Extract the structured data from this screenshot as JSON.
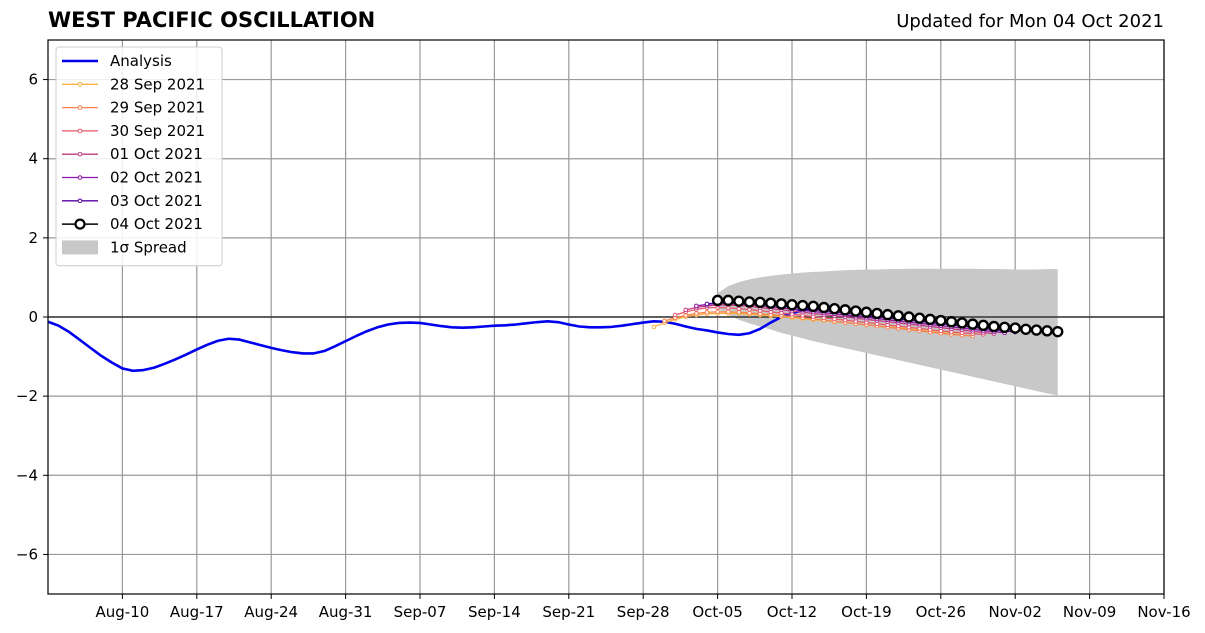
{
  "header": {
    "title": "WEST PACIFIC OSCILLATION",
    "updated": "Updated for Mon 04 Oct 2021"
  },
  "chart_data": {
    "type": "line",
    "title": "WEST PACIFIC OSCILLATION",
    "xlabel": "",
    "ylabel": "",
    "x_axis": {
      "type": "date",
      "range": [
        "2021-08-03",
        "2021-11-16"
      ],
      "ticks": [
        "2021-08-10",
        "2021-08-17",
        "2021-08-24",
        "2021-08-31",
        "2021-09-07",
        "2021-09-14",
        "2021-09-21",
        "2021-09-28",
        "2021-10-05",
        "2021-10-12",
        "2021-10-19",
        "2021-10-26",
        "2021-11-02",
        "2021-11-09",
        "2021-11-16"
      ],
      "tick_labels": [
        "Aug-10",
        "Aug-17",
        "Aug-24",
        "Aug-31",
        "Sep-07",
        "Sep-14",
        "Sep-21",
        "Sep-28",
        "Oct-05",
        "Oct-12",
        "Oct-19",
        "Oct-26",
        "Nov-02",
        "Nov-09",
        "Nov-16"
      ]
    },
    "y_axis": {
      "range": [
        -7,
        7
      ],
      "ticks": [
        6,
        4,
        2,
        0,
        -2,
        -4,
        -6
      ],
      "tick_labels": [
        "6",
        "4",
        "2",
        "0",
        "−2",
        "−4",
        "−6"
      ]
    },
    "grid": true,
    "zero_line": true,
    "legend_position": "upper-left",
    "series": [
      {
        "name": "Analysis",
        "color": "#0000ee",
        "style": "line",
        "start_date": "2021-08-03",
        "step_days": 1,
        "values": [
          -0.12,
          -0.22,
          -0.38,
          -0.58,
          -0.78,
          -0.98,
          -1.15,
          -1.3,
          -1.36,
          -1.34,
          -1.28,
          -1.18,
          -1.07,
          -0.95,
          -0.82,
          -0.7,
          -0.6,
          -0.55,
          -0.57,
          -0.64,
          -0.71,
          -0.78,
          -0.84,
          -0.89,
          -0.92,
          -0.92,
          -0.86,
          -0.74,
          -0.61,
          -0.48,
          -0.36,
          -0.26,
          -0.19,
          -0.15,
          -0.14,
          -0.15,
          -0.19,
          -0.23,
          -0.26,
          -0.27,
          -0.26,
          -0.24,
          -0.22,
          -0.21,
          -0.19,
          -0.16,
          -0.13,
          -0.11,
          -0.13,
          -0.19,
          -0.24,
          -0.26,
          -0.26,
          -0.25,
          -0.22,
          -0.18,
          -0.14,
          -0.11,
          -0.12,
          -0.17,
          -0.24,
          -0.3,
          -0.34,
          -0.39,
          -0.43,
          -0.45,
          -0.41,
          -0.3,
          -0.14,
          0.0,
          0.1,
          0.16,
          0.21,
          0.25,
          0.27
        ]
      },
      {
        "name": "28 Sep 2021",
        "color": "#fcb043",
        "style": "line-dot",
        "start_date": "2021-09-29",
        "step_days": 1,
        "values": [
          -0.25,
          -0.15,
          -0.06,
          0.01,
          0.05,
          0.08,
          0.09,
          0.09,
          0.09,
          0.07,
          0.05,
          0.03,
          0.01,
          -0.02,
          -0.04,
          -0.07,
          -0.09,
          -0.12,
          -0.14,
          -0.17,
          -0.2,
          -0.22,
          -0.25,
          -0.27,
          -0.3,
          -0.33,
          -0.36,
          -0.39,
          -0.42,
          -0.45
        ]
      },
      {
        "name": "29 Sep 2021",
        "color": "#f7814b",
        "style": "line-dot",
        "start_date": "2021-09-30",
        "step_days": 1,
        "values": [
          -0.1,
          -0.02,
          0.04,
          0.09,
          0.12,
          0.13,
          0.13,
          0.12,
          0.1,
          0.08,
          0.06,
          0.04,
          0.01,
          -0.02,
          -0.05,
          -0.08,
          -0.11,
          -0.14,
          -0.17,
          -0.2,
          -0.23,
          -0.26,
          -0.29,
          -0.32,
          -0.35,
          -0.38,
          -0.41,
          -0.44,
          -0.46,
          -0.48
        ]
      },
      {
        "name": "30 Sep 2021",
        "color": "#e7576a",
        "style": "line-dot",
        "start_date": "2021-10-01",
        "step_days": 1,
        "values": [
          0.05,
          0.13,
          0.19,
          0.23,
          0.24,
          0.23,
          0.21,
          0.19,
          0.16,
          0.13,
          0.1,
          0.07,
          0.04,
          0.01,
          -0.02,
          -0.05,
          -0.08,
          -0.11,
          -0.14,
          -0.17,
          -0.2,
          -0.23,
          -0.26,
          -0.29,
          -0.32,
          -0.35,
          -0.38,
          -0.4,
          -0.42,
          -0.44
        ]
      },
      {
        "name": "01 Oct 2021",
        "color": "#c03a83",
        "style": "line-dot",
        "start_date": "2021-10-02",
        "step_days": 1,
        "values": [
          0.18,
          0.24,
          0.28,
          0.3,
          0.3,
          0.29,
          0.27,
          0.24,
          0.21,
          0.18,
          0.15,
          0.12,
          0.09,
          0.06,
          0.03,
          0.0,
          -0.03,
          -0.06,
          -0.09,
          -0.12,
          -0.15,
          -0.18,
          -0.21,
          -0.24,
          -0.27,
          -0.3,
          -0.33,
          -0.36,
          -0.39,
          -0.42
        ]
      },
      {
        "name": "02 Oct 2021",
        "color": "#8e13a7",
        "style": "line-dot",
        "start_date": "2021-10-03",
        "step_days": 1,
        "values": [
          0.28,
          0.32,
          0.34,
          0.34,
          0.33,
          0.31,
          0.29,
          0.26,
          0.23,
          0.2,
          0.17,
          0.14,
          0.11,
          0.08,
          0.05,
          0.02,
          -0.01,
          -0.04,
          -0.07,
          -0.1,
          -0.13,
          -0.16,
          -0.19,
          -0.22,
          -0.25,
          -0.28,
          -0.31,
          -0.34,
          -0.37,
          -0.4
        ]
      },
      {
        "name": "03 Oct 2021",
        "color": "#5302a3",
        "style": "line-dot",
        "start_date": "2021-10-04",
        "step_days": 1,
        "values": [
          0.33,
          0.36,
          0.37,
          0.36,
          0.35,
          0.33,
          0.31,
          0.28,
          0.25,
          0.22,
          0.19,
          0.16,
          0.13,
          0.1,
          0.07,
          0.04,
          0.01,
          -0.02,
          -0.05,
          -0.08,
          -0.11,
          -0.14,
          -0.17,
          -0.2,
          -0.23,
          -0.26,
          -0.29,
          -0.32,
          -0.35,
          -0.38
        ]
      },
      {
        "name": "04 Oct 2021",
        "color": "#000000",
        "style": "line-circle",
        "start_date": "2021-10-05",
        "step_days": 1,
        "values": [
          0.42,
          0.42,
          0.4,
          0.38,
          0.37,
          0.35,
          0.33,
          0.31,
          0.29,
          0.27,
          0.24,
          0.21,
          0.18,
          0.15,
          0.12,
          0.09,
          0.06,
          0.03,
          0.0,
          -0.03,
          -0.06,
          -0.09,
          -0.12,
          -0.15,
          -0.18,
          -0.21,
          -0.24,
          -0.26,
          -0.28,
          -0.31,
          -0.33,
          -0.35,
          -0.37
        ]
      }
    ],
    "spread": {
      "name": "1σ Spread",
      "color": "#c8c8c8",
      "start_date": "2021-10-05",
      "step_days": 1,
      "upper": [
        0.6,
        0.78,
        0.88,
        0.95,
        1.0,
        1.04,
        1.07,
        1.1,
        1.12,
        1.14,
        1.15,
        1.17,
        1.18,
        1.19,
        1.2,
        1.2,
        1.21,
        1.21,
        1.22,
        1.22,
        1.22,
        1.22,
        1.22,
        1.22,
        1.22,
        1.21,
        1.21,
        1.21,
        1.2,
        1.2,
        1.2,
        1.21,
        1.21
      ],
      "lower": [
        0.2,
        0.05,
        -0.07,
        -0.16,
        -0.24,
        -0.32,
        -0.4,
        -0.47,
        -0.54,
        -0.61,
        -0.67,
        -0.73,
        -0.79,
        -0.85,
        -0.91,
        -0.97,
        -1.03,
        -1.09,
        -1.15,
        -1.21,
        -1.27,
        -1.33,
        -1.39,
        -1.45,
        -1.51,
        -1.57,
        -1.63,
        -1.69,
        -1.75,
        -1.81,
        -1.87,
        -1.93,
        -1.98
      ]
    }
  }
}
